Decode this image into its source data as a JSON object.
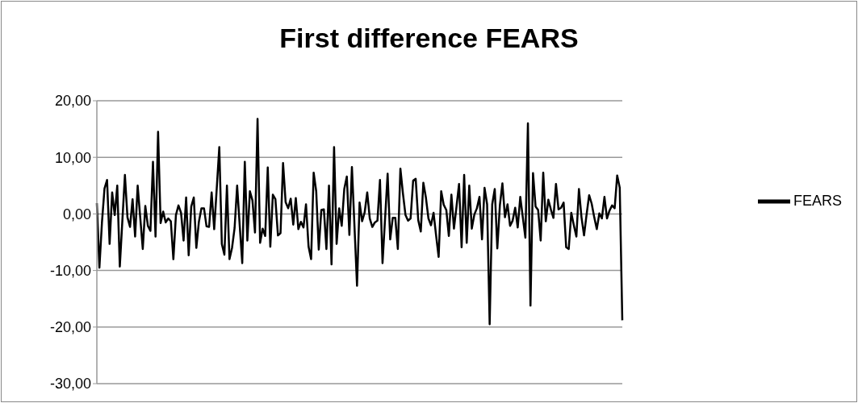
{
  "chart_data": {
    "type": "line",
    "title": "First difference FEARS",
    "categories": [
      null,
      null,
      null,
      null,
      null,
      null,
      null,
      null,
      null,
      null,
      null,
      null,
      null,
      null,
      null,
      null,
      null,
      null,
      null,
      null,
      null,
      null,
      null,
      null,
      null,
      null,
      null,
      null,
      null,
      null,
      null,
      null,
      null,
      null,
      null,
      null,
      null,
      null,
      null,
      null,
      null,
      null,
      null,
      null,
      null,
      null,
      null,
      null,
      null,
      null,
      null,
      null,
      null,
      null,
      null,
      null,
      null,
      null,
      null,
      null,
      null,
      null,
      null,
      null,
      null,
      null,
      null,
      null,
      null,
      null,
      null,
      null,
      null,
      null,
      null,
      null,
      null,
      null,
      null,
      null,
      null,
      null,
      null,
      null,
      null,
      null,
      null,
      null,
      null,
      null,
      null,
      null,
      null,
      null,
      null,
      null,
      null,
      null,
      null,
      null,
      null,
      null,
      null,
      null,
      null,
      null,
      null,
      null,
      null,
      null,
      null,
      null,
      null,
      null,
      null,
      null,
      null,
      null,
      null,
      null,
      null,
      null,
      null,
      null,
      null,
      null,
      null,
      null,
      null,
      null,
      null,
      null,
      null,
      null,
      null,
      null,
      null,
      null,
      null,
      null,
      null,
      null,
      null,
      null,
      null,
      null,
      null,
      null,
      null,
      null,
      null,
      null,
      null,
      null,
      null,
      null,
      null,
      null,
      null,
      null,
      null,
      null,
      null,
      null,
      null,
      null,
      null,
      null,
      null,
      null,
      null,
      null,
      null,
      null,
      null,
      null,
      null,
      null,
      null,
      null,
      null,
      null,
      null,
      null,
      null,
      null,
      null,
      null,
      null,
      null,
      null,
      null,
      null,
      null,
      null,
      null,
      null,
      null,
      null,
      null,
      null,
      null,
      null,
      null,
      null,
      null,
      null
    ],
    "series": [
      {
        "name": "FEARS",
        "color": "#000000",
        "values": [
          1.9,
          -9.5,
          -1.5,
          4.5,
          6.0,
          -5.3,
          3.8,
          -0.2,
          5.0,
          -9.3,
          -1.2,
          6.9,
          -0.6,
          -2.3,
          2.6,
          -4.0,
          5.0,
          -0.6,
          -6.2,
          1.4,
          -2.1,
          -3.0,
          9.2,
          -4.0,
          14.5,
          -1.6,
          0.4,
          -1.5,
          -0.8,
          -1.3,
          -8.0,
          -0.2,
          1.5,
          0.2,
          -4.7,
          2.9,
          -7.3,
          1.3,
          2.9,
          -6.0,
          -1.4,
          1.0,
          1.0,
          -2.2,
          -2.3,
          3.8,
          -2.7,
          4.5,
          11.8,
          -5.3,
          -7.2,
          5.0,
          -8.0,
          -6.0,
          -2.5,
          5.0,
          -2.0,
          -8.7,
          9.2,
          -4.7,
          4.0,
          2.4,
          -3.3,
          16.8,
          -5.1,
          -2.6,
          -3.9,
          8.2,
          -5.8,
          3.4,
          2.6,
          -3.8,
          -3.4,
          9.0,
          2.1,
          1.0,
          2.7,
          -1.9,
          2.8,
          -2.7,
          -1.4,
          -2.4,
          1.7,
          -5.8,
          -8.0,
          7.3,
          4.0,
          -6.3,
          0.7,
          0.8,
          -6.2,
          5.0,
          -8.9,
          11.8,
          -5.3,
          1.0,
          -2.1,
          4.4,
          6.6,
          -3.7,
          8.3,
          -2.2,
          -12.7,
          2.0,
          -1.3,
          0.3,
          3.8,
          -0.8,
          -2.3,
          -1.5,
          -1.2,
          6.0,
          -8.7,
          -0.8,
          7.1,
          -4.5,
          -0.7,
          -0.7,
          -6.2,
          8.0,
          3.6,
          -0.2,
          -1.2,
          -0.8,
          5.9,
          6.2,
          -1.1,
          -3.1,
          5.5,
          2.9,
          -0.8,
          -2.0,
          0.2,
          -3.8,
          -7.6,
          4.0,
          1.6,
          0.7,
          -3.9,
          3.4,
          -2.6,
          1.3,
          5.3,
          -5.9,
          6.9,
          -5.1,
          5.0,
          -2.6,
          -0.1,
          1.0,
          3.0,
          -4.5,
          4.6,
          1.7,
          -19.5,
          1.7,
          4.4,
          -6.1,
          1.5,
          5.4,
          -0.6,
          1.7,
          -2.1,
          -1.2,
          1.1,
          -2.4,
          3.0,
          -0.6,
          -4.2,
          16.0,
          -16.2,
          7.2,
          1.3,
          0.7,
          -4.7,
          7.3,
          -1.3,
          2.5,
          0.8,
          -0.7,
          5.3,
          0.8,
          1.1,
          2.0,
          -5.9,
          -6.2,
          0.2,
          -2.0,
          -4.0,
          4.4,
          -0.6,
          -3.8,
          -0.1,
          3.3,
          1.8,
          -0.6,
          -2.7,
          0.1,
          -0.8,
          3.0,
          -0.8,
          0.6,
          1.5,
          1.0,
          6.8,
          4.6,
          -18.8
        ]
      }
    ],
    "ylim": [
      -30,
      20
    ],
    "yticks": [
      {
        "value": 20,
        "label": "20,00"
      },
      {
        "value": 10,
        "label": "10,00"
      },
      {
        "value": 0,
        "label": "0,00"
      },
      {
        "value": -10,
        "label": "-10,00"
      },
      {
        "value": -20,
        "label": "-20,00"
      },
      {
        "value": -30,
        "label": "-30,00"
      }
    ],
    "grid": "y",
    "legend": "right",
    "marker": "none",
    "line_style": "solid",
    "tick_labels": "y"
  }
}
